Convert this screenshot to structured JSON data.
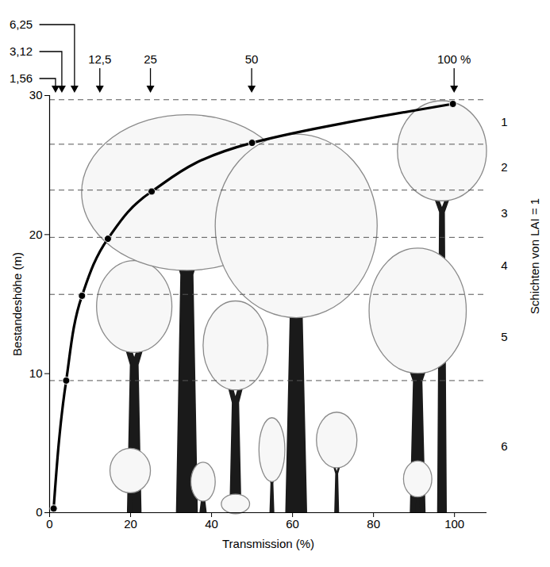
{
  "chart_data": {
    "type": "line",
    "x_label": "Transmission (%)",
    "y_label": "Bestandeshöhe (m)",
    "x": [
      1,
      4.1,
      8,
      14.4,
      25.2,
      50,
      99.6
    ],
    "values": [
      0.3,
      9.5,
      15.6,
      19.7,
      23.1,
      26.6,
      29.4
    ],
    "color": "#000000",
    "marker": "circle",
    "line_style": "solid",
    "xlim": [
      0,
      108
    ],
    "ylim": [
      0,
      30
    ],
    "xticks": [
      0,
      20,
      40,
      60,
      80,
      100
    ],
    "yticks": [
      0,
      10,
      20,
      30
    ],
    "annotations": [
      {
        "value": 1.56,
        "label": "1,56"
      },
      {
        "value": 3.12,
        "label": "3,12"
      },
      {
        "value": 6.25,
        "label": "6,25"
      },
      {
        "value": 12.5,
        "label": "12,5"
      },
      {
        "value": 25,
        "label": "25"
      },
      {
        "value": 50,
        "label": "50"
      },
      {
        "value": 100,
        "label": "100 %"
      }
    ],
    "layers": {
      "title": "Schichten von LAI = 1",
      "labels": [
        "1",
        "2",
        "3",
        "4",
        "5",
        "6"
      ],
      "bounds": [
        29.7,
        26.5,
        23.2,
        19.8,
        15.7,
        9.5
      ]
    }
  }
}
